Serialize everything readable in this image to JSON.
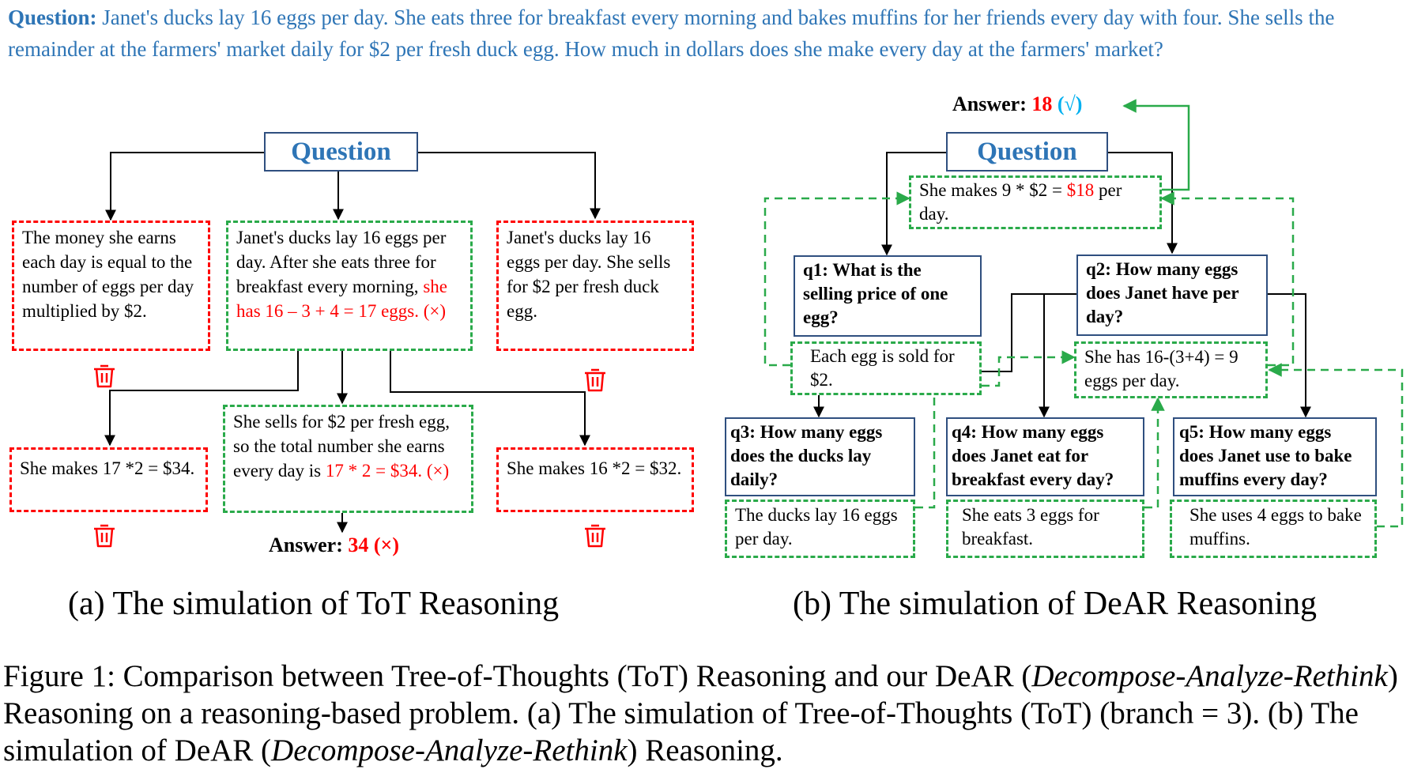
{
  "question": {
    "label": "Question:",
    "text": "Janet's ducks lay 16 eggs per day. She eats three for breakfast every morning and bakes muffins for her friends every day with four. She sells the remainder at the farmers' market daily for $2 per fresh duck egg. How much in dollars does she make every day at the farmers' market?"
  },
  "tot": {
    "header": "Question",
    "branch1": "The money she earns each day is equal to the number of eggs per day multiplied by $2.",
    "branch2_pre": "Janet's ducks lay 16 eggs per day. After she  eats three for breakfast every morning, ",
    "branch2_red": "she has 16 – 3 + 4 = 17 eggs. (×)",
    "branch3": "Janet's ducks lay 16 eggs per day. She sells for $2 per fresh duck egg.",
    "leaf1": "She makes 17 *2 = $34.",
    "leaf2_pre": "She sells for $2 per fresh egg, so the total number she earns every day is ",
    "leaf2_red": "17 * 2 = $34. (×)",
    "leaf3": "She makes 16 *2 = $32.",
    "answer_label": "Answer: ",
    "answer_value": "34 (×)",
    "subtitle": "(a) The simulation of ToT Reasoning"
  },
  "dear": {
    "header": "Question",
    "answer_label": "Answer: ",
    "answer_value": "18",
    "answer_check": "(√)",
    "rethink_pre": "She makes 9 * $2 = ",
    "rethink_red": "$18",
    "rethink_post": " per day.",
    "q1": "q1: What is the selling price of one egg?",
    "a1": "Each egg is sold for $2.",
    "q2": "q2: How many eggs does Janet have per day?",
    "a2": "She has 16-(3+4) = 9 eggs per day.",
    "q3": "q3: How many eggs does the ducks lay daily?",
    "a3": "The ducks lay 16 eggs per day.",
    "q4": "q4: How many eggs does Janet eat for breakfast every day?",
    "a4": "She eats 3 eggs for breakfast.",
    "q5": "q5: How many eggs does Janet use to bake muffins every day?",
    "a5": "She uses 4 eggs to bake muffins.",
    "subtitle": "(b) The simulation of DeAR Reasoning"
  },
  "caption": {
    "p1": "Figure 1: Comparison between Tree-of-Thoughts (ToT) Reasoning and our DeAR (",
    "i1": "Decompose-Analyze-Rethink",
    "p2": ") Reasoning on a reasoning-based problem. (a) The simulation of Tree-of-Thoughts (ToT) (branch = 3). (b) The simulation of DeAR (",
    "i2": "Decompose-Analyze-Rethink",
    "p3": ") Reasoning."
  },
  "icons": [
    "trash-icon"
  ],
  "colors": {
    "blue": "#2E75B6",
    "red": "#FF0000",
    "green": "#2AAA4A",
    "check": "#00B0F0"
  }
}
